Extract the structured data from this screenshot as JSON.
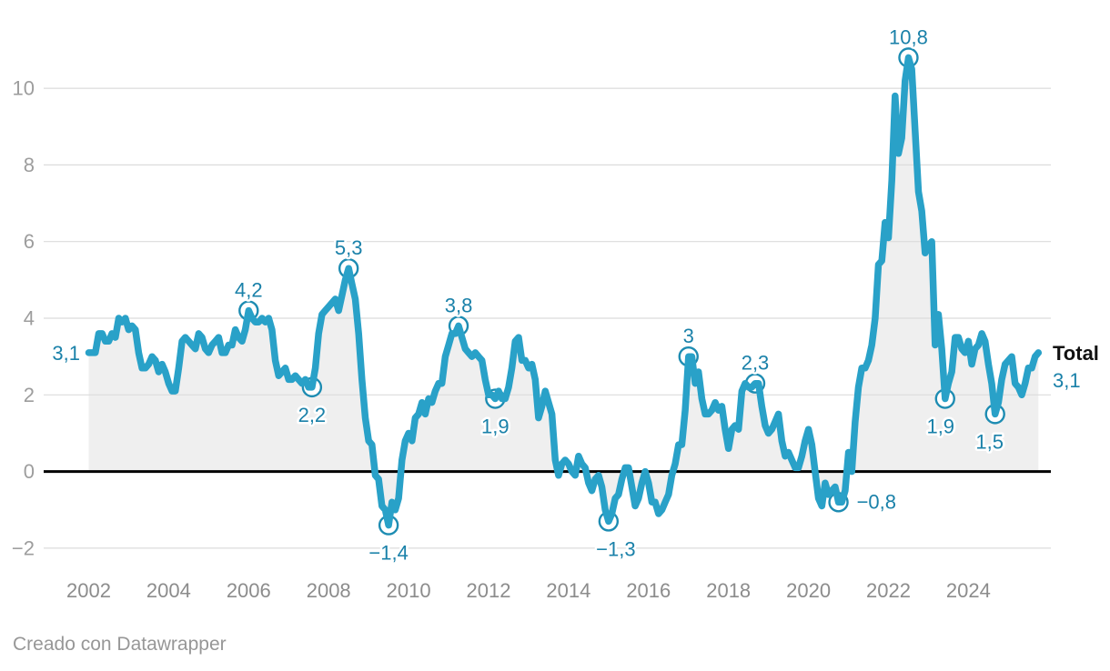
{
  "colors": {
    "line": "#29a1c8",
    "marker_stroke": "#1d8cb2",
    "label": "#1a81a9",
    "area": "#efefef",
    "grid": "#dcdcdc",
    "baseline": "#000000",
    "axis_y_text": "#9d9d9d",
    "axis_x_text": "#8c8c8c",
    "total_title": "#111111",
    "credit_text": "#979797"
  },
  "footer": {
    "credit": "Creado con Datawrapper"
  },
  "chart_data": {
    "type": "area",
    "series_name": "Total",
    "frequency": "monthly",
    "x_start": "2002-01",
    "x_end": "2025-10",
    "ylim": [
      -2.4,
      11.4
    ],
    "grid": "horizontal",
    "fill_to_zero": true,
    "y_ticks": [
      {
        "v": 10,
        "label": "10"
      },
      {
        "v": 8,
        "label": "8"
      },
      {
        "v": 6,
        "label": "6"
      },
      {
        "v": 4,
        "label": "4"
      },
      {
        "v": 2,
        "label": "2"
      },
      {
        "v": 0,
        "label": "0"
      },
      {
        "v": -2,
        "label": "−2"
      }
    ],
    "x_ticks": [
      {
        "label": "2002",
        "month_index": 0
      },
      {
        "label": "2004",
        "month_index": 24
      },
      {
        "label": "2006",
        "month_index": 48
      },
      {
        "label": "2008",
        "month_index": 72
      },
      {
        "label": "2010",
        "month_index": 96
      },
      {
        "label": "2012",
        "month_index": 120
      },
      {
        "label": "2014",
        "month_index": 144
      },
      {
        "label": "2016",
        "month_index": 168
      },
      {
        "label": "2018",
        "month_index": 192
      },
      {
        "label": "2020",
        "month_index": 216
      },
      {
        "label": "2022",
        "month_index": 240
      },
      {
        "label": "2024",
        "month_index": 264
      }
    ],
    "start_label": "3,1",
    "end_label": {
      "title": "Total",
      "value": "3,1"
    },
    "annotations": [
      {
        "label": "4,2",
        "month_index": 48,
        "value": 4.2,
        "placement": "top"
      },
      {
        "label": "2,2",
        "month_index": 67,
        "value": 2.2,
        "placement": "bottom"
      },
      {
        "label": "5,3",
        "month_index": 78,
        "value": 5.3,
        "placement": "top"
      },
      {
        "label": "−1,4",
        "month_index": 90,
        "value": -1.4,
        "placement": "bottom"
      },
      {
        "label": "3,8",
        "month_index": 111,
        "value": 3.8,
        "placement": "top"
      },
      {
        "label": "1,9",
        "month_index": 122,
        "value": 1.9,
        "placement": "bottom"
      },
      {
        "label": "−1,3",
        "month_index": 156,
        "value": -1.3,
        "placement": "bottom",
        "dx": 8
      },
      {
        "label": "3",
        "month_index": 180,
        "value": 3.0,
        "placement": "top"
      },
      {
        "label": "2,3",
        "month_index": 200,
        "value": 2.3,
        "placement": "top"
      },
      {
        "label": "−0,8",
        "month_index": 225,
        "value": -0.8,
        "placement": "right"
      },
      {
        "label": "10,8",
        "month_index": 246,
        "value": 10.8,
        "placement": "top"
      },
      {
        "label": "1,9",
        "month_index": 257,
        "value": 1.9,
        "placement": "bottom",
        "dx": -5
      },
      {
        "label": "1,5",
        "month_index": 272,
        "value": 1.5,
        "placement": "bottom",
        "dx": -6
      }
    ],
    "series": [
      {
        "name": "Total",
        "values": [
          3.1,
          3.1,
          3.1,
          3.6,
          3.6,
          3.4,
          3.4,
          3.6,
          3.5,
          4.0,
          3.9,
          4.0,
          3.7,
          3.8,
          3.7,
          3.1,
          2.7,
          2.7,
          2.8,
          3.0,
          2.9,
          2.6,
          2.8,
          2.6,
          2.3,
          2.1,
          2.1,
          2.7,
          3.4,
          3.5,
          3.4,
          3.3,
          3.2,
          3.6,
          3.5,
          3.2,
          3.1,
          3.3,
          3.4,
          3.5,
          3.1,
          3.1,
          3.3,
          3.3,
          3.7,
          3.5,
          3.4,
          3.7,
          4.2,
          4.0,
          3.9,
          3.9,
          4.0,
          3.9,
          4.0,
          3.7,
          2.9,
          2.5,
          2.6,
          2.7,
          2.4,
          2.4,
          2.5,
          2.4,
          2.3,
          2.4,
          2.2,
          2.2,
          2.7,
          3.6,
          4.1,
          4.2,
          4.3,
          4.4,
          4.5,
          4.2,
          4.6,
          5.0,
          5.3,
          4.9,
          4.5,
          3.6,
          2.4,
          1.4,
          0.8,
          0.7,
          -0.1,
          -0.2,
          -0.9,
          -1.0,
          -1.4,
          -0.8,
          -1.0,
          -0.7,
          0.3,
          0.8,
          1.0,
          0.8,
          1.4,
          1.5,
          1.8,
          1.5,
          1.9,
          1.8,
          2.1,
          2.3,
          2.3,
          3.0,
          3.3,
          3.6,
          3.6,
          3.8,
          3.5,
          3.2,
          3.1,
          3.0,
          3.1,
          3.0,
          2.9,
          2.4,
          2.0,
          2.0,
          1.9,
          2.1,
          1.9,
          1.9,
          2.2,
          2.7,
          3.4,
          3.5,
          2.9,
          2.9,
          2.7,
          2.8,
          2.4,
          1.4,
          1.7,
          2.1,
          1.8,
          1.5,
          0.3,
          -0.1,
          0.2,
          0.3,
          0.2,
          0.0,
          -0.1,
          0.4,
          0.2,
          0.1,
          -0.3,
          -0.5,
          -0.2,
          -0.1,
          -0.4,
          -1.0,
          -1.3,
          -1.1,
          -0.7,
          -0.6,
          -0.2,
          0.1,
          0.1,
          -0.4,
          -0.9,
          -0.7,
          -0.3,
          0.0,
          -0.3,
          -0.8,
          -0.8,
          -1.1,
          -1.0,
          -0.8,
          -0.6,
          -0.1,
          0.2,
          0.7,
          0.7,
          1.6,
          3.0,
          3.0,
          2.3,
          2.6,
          1.9,
          1.5,
          1.5,
          1.6,
          1.8,
          1.6,
          1.7,
          1.1,
          0.6,
          1.1,
          1.2,
          1.1,
          2.1,
          2.3,
          2.2,
          2.2,
          2.3,
          2.3,
          1.7,
          1.2,
          1.0,
          1.1,
          1.3,
          1.5,
          0.8,
          0.4,
          0.5,
          0.3,
          0.1,
          0.1,
          0.4,
          0.8,
          1.1,
          0.7,
          0.0,
          -0.7,
          -0.9,
          -0.3,
          -0.6,
          -0.5,
          -0.4,
          -0.8,
          -0.8,
          -0.5,
          0.5,
          0.0,
          1.3,
          2.2,
          2.7,
          2.7,
          2.9,
          3.3,
          4.0,
          5.4,
          5.5,
          6.5,
          6.1,
          7.6,
          9.8,
          8.3,
          8.7,
          10.2,
          10.8,
          10.5,
          8.9,
          7.3,
          6.8,
          5.7,
          5.9,
          6.0,
          3.3,
          4.1,
          3.2,
          1.9,
          2.3,
          2.6,
          3.5,
          3.5,
          3.2,
          3.1,
          3.4,
          2.8,
          3.2,
          3.3,
          3.6,
          3.4,
          2.8,
          2.3,
          1.5,
          1.8,
          2.4,
          2.8,
          2.9,
          3.0,
          2.3,
          2.2,
          2.0,
          2.3,
          2.7,
          2.7,
          3.0,
          3.1
        ]
      }
    ]
  }
}
